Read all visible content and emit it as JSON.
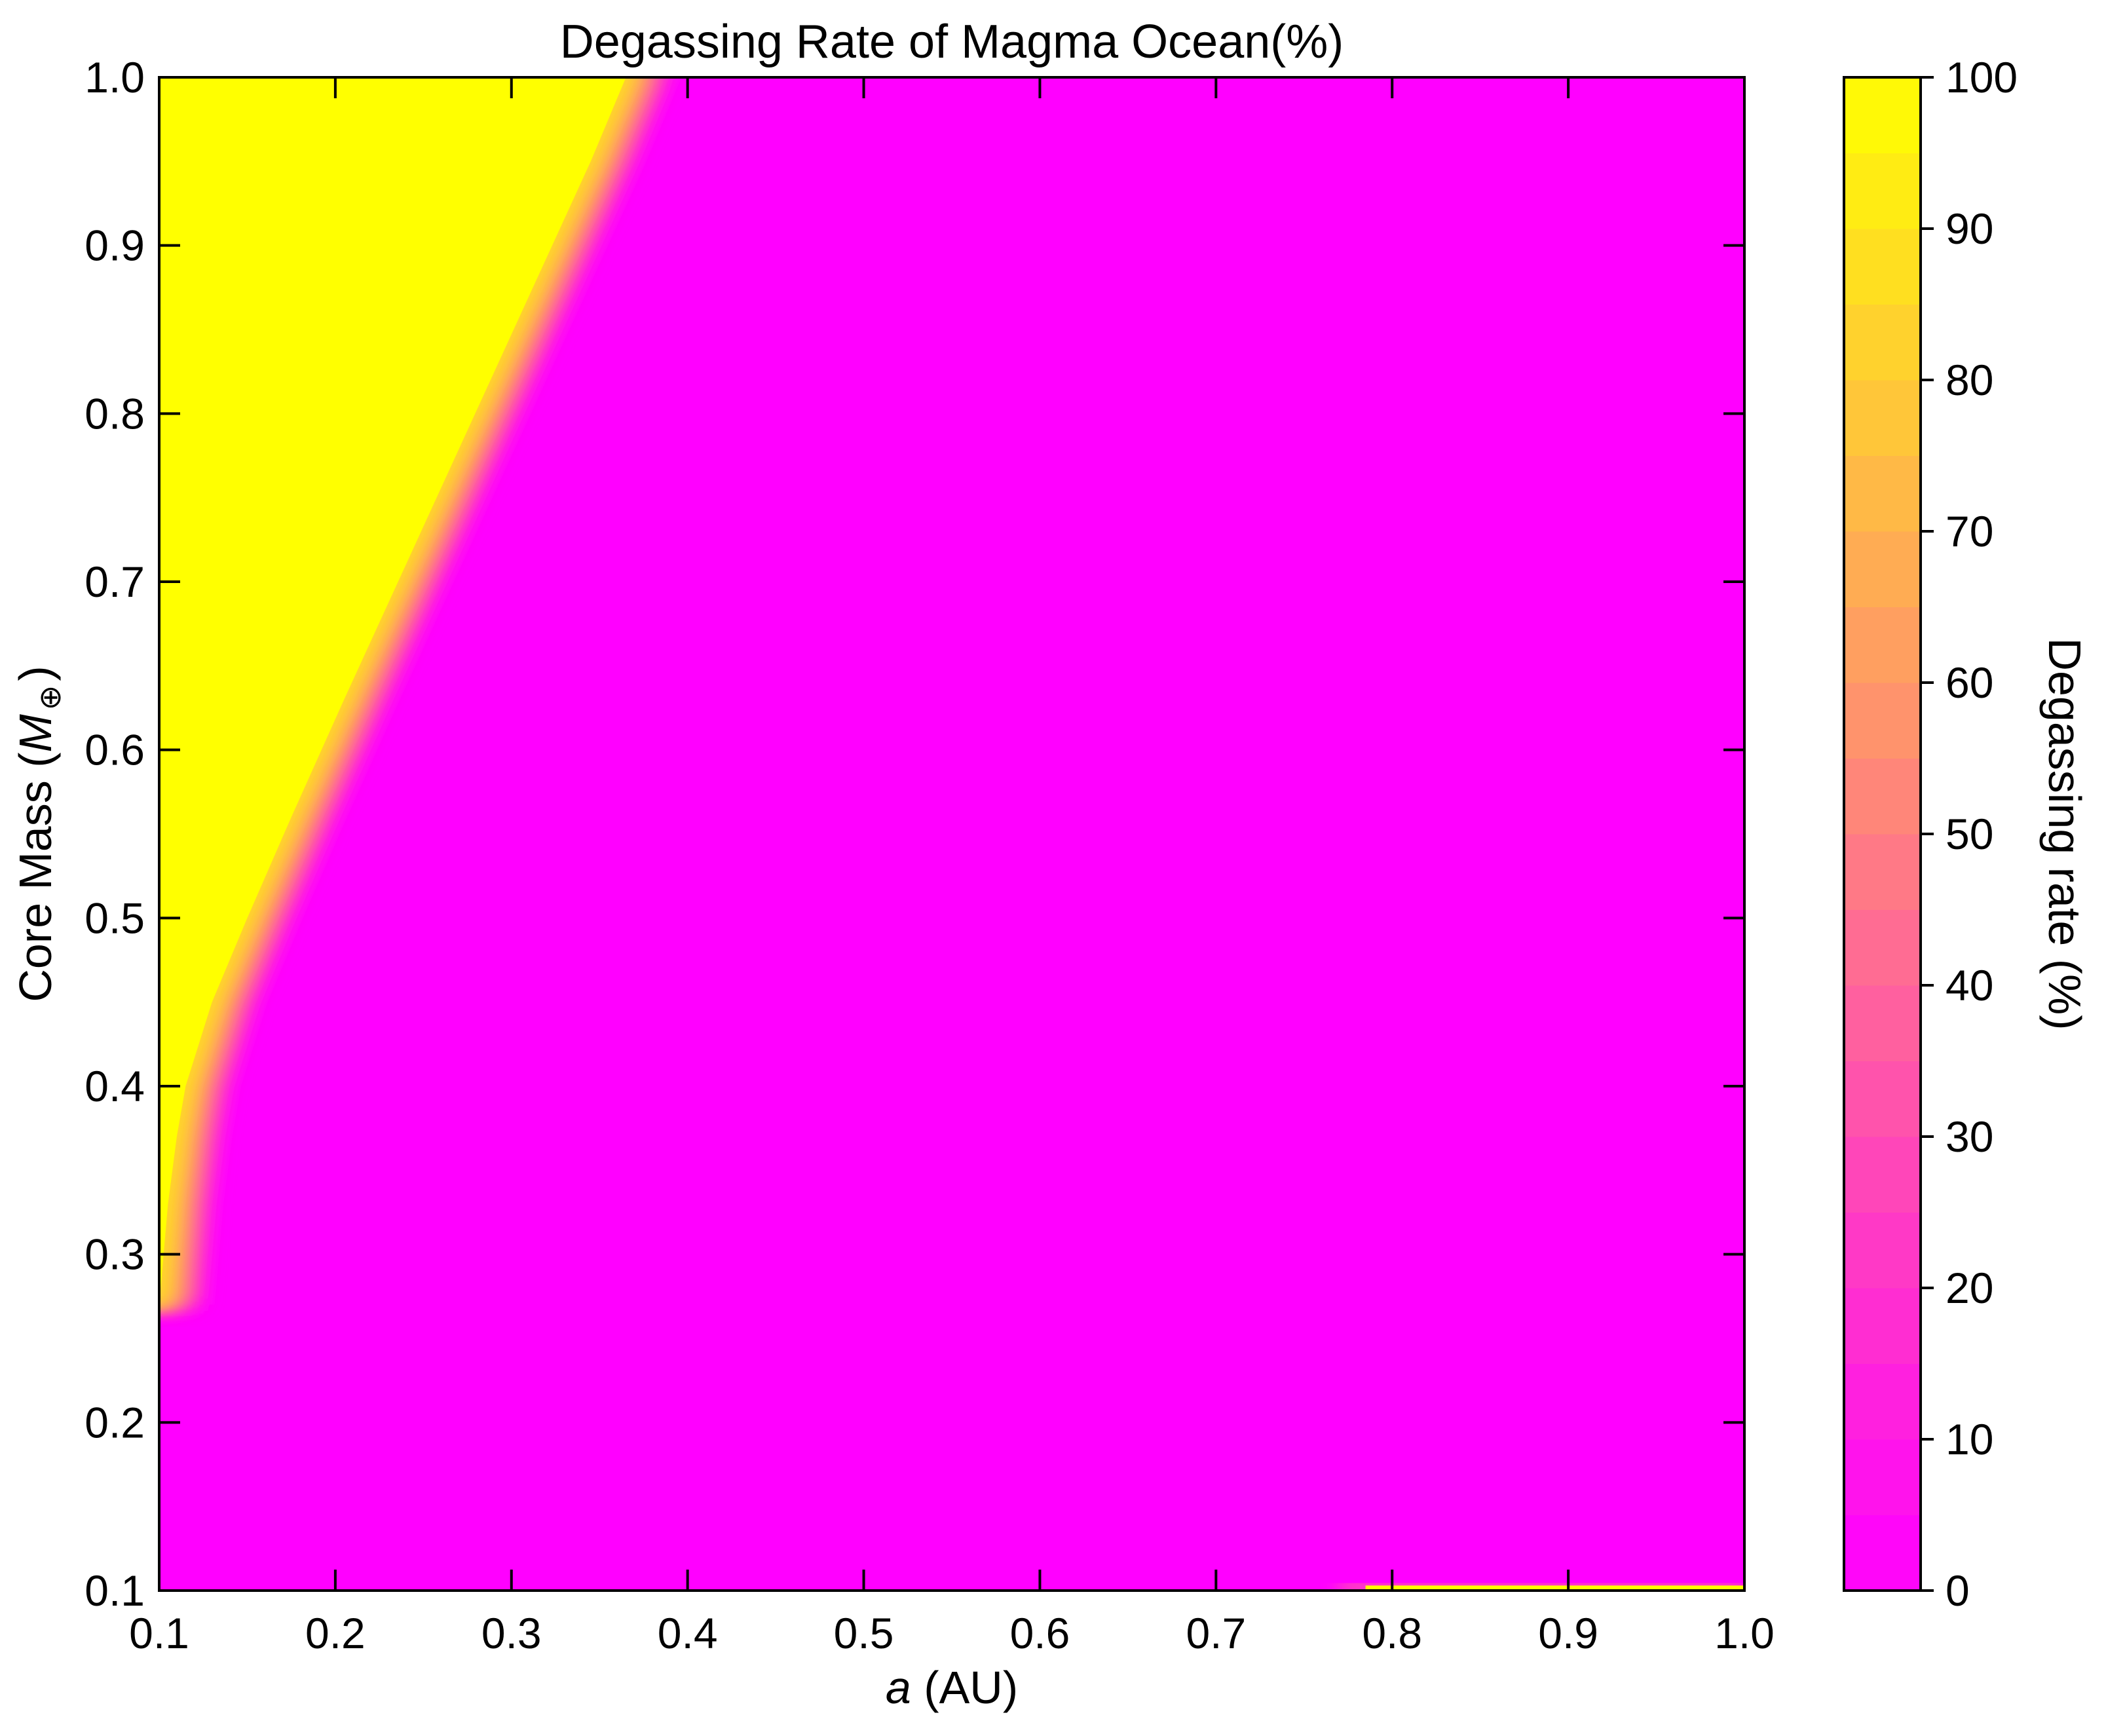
{
  "chart_data": {
    "type": "heatmap",
    "title": "Degassing Rate of Magma Ocean(%)",
    "xlabel": {
      "italic": "a",
      "rest": " (AU)"
    },
    "ylabel": {
      "prefix": "Core Mass (",
      "italic": "M",
      "subscript": "⊕",
      "suffix": ")"
    },
    "xlim": [
      0.1,
      1.0
    ],
    "ylim": [
      0.1,
      1.0
    ],
    "xticks": [
      0.1,
      0.2,
      0.3,
      0.4,
      0.5,
      0.6,
      0.7,
      0.8,
      0.9,
      1.0
    ],
    "yticks": [
      0.1,
      0.2,
      0.3,
      0.4,
      0.5,
      0.6,
      0.7,
      0.8,
      0.9,
      1.0
    ],
    "xtick_labels": [
      "0.1",
      "0.2",
      "0.3",
      "0.4",
      "0.5",
      "0.6",
      "0.7",
      "0.8",
      "0.9",
      "1.0"
    ],
    "ytick_labels": [
      "0.1",
      "0.2",
      "0.3",
      "0.4",
      "0.5",
      "0.6",
      "0.7",
      "0.8",
      "0.9",
      "1.0"
    ],
    "colorbar": {
      "label": "Degassing rate (%)",
      "range": [
        0,
        100
      ],
      "ticks": [
        0,
        10,
        20,
        30,
        40,
        50,
        60,
        70,
        80,
        90,
        100
      ],
      "tick_labels": [
        "0",
        "10",
        "20",
        "30",
        "40",
        "50",
        "60",
        "70",
        "80",
        "90",
        "100"
      ],
      "levels": 20,
      "colormap": "spring",
      "color_low": "#ff00ff",
      "color_high": "#ffff00"
    },
    "regions": [
      {
        "value": 100,
        "description_boundary": "yellow region left of boundary curve",
        "boundary": [
          {
            "a": 0.1,
            "mass": 0.27
          },
          {
            "a": 0.105,
            "mass": 0.33
          },
          {
            "a": 0.11,
            "mass": 0.37
          },
          {
            "a": 0.115,
            "mass": 0.4
          },
          {
            "a": 0.13,
            "mass": 0.45
          },
          {
            "a": 0.15,
            "mass": 0.5
          },
          {
            "a": 0.175,
            "mass": 0.56
          },
          {
            "a": 0.205,
            "mass": 0.63
          },
          {
            "a": 0.24,
            "mass": 0.71
          },
          {
            "a": 0.275,
            "mass": 0.79
          },
          {
            "a": 0.31,
            "mass": 0.87
          },
          {
            "a": 0.345,
            "mass": 0.95
          },
          {
            "a": 0.365,
            "mass": 1.0
          }
        ],
        "transition_width_a": 0.025
      },
      {
        "value": 100,
        "description_boundary": "thin yellow band along bottom edge",
        "a_range": [
          0.77,
          1.0
        ],
        "mass_range": [
          0.1,
          0.103
        ]
      }
    ],
    "background_value": 0
  }
}
